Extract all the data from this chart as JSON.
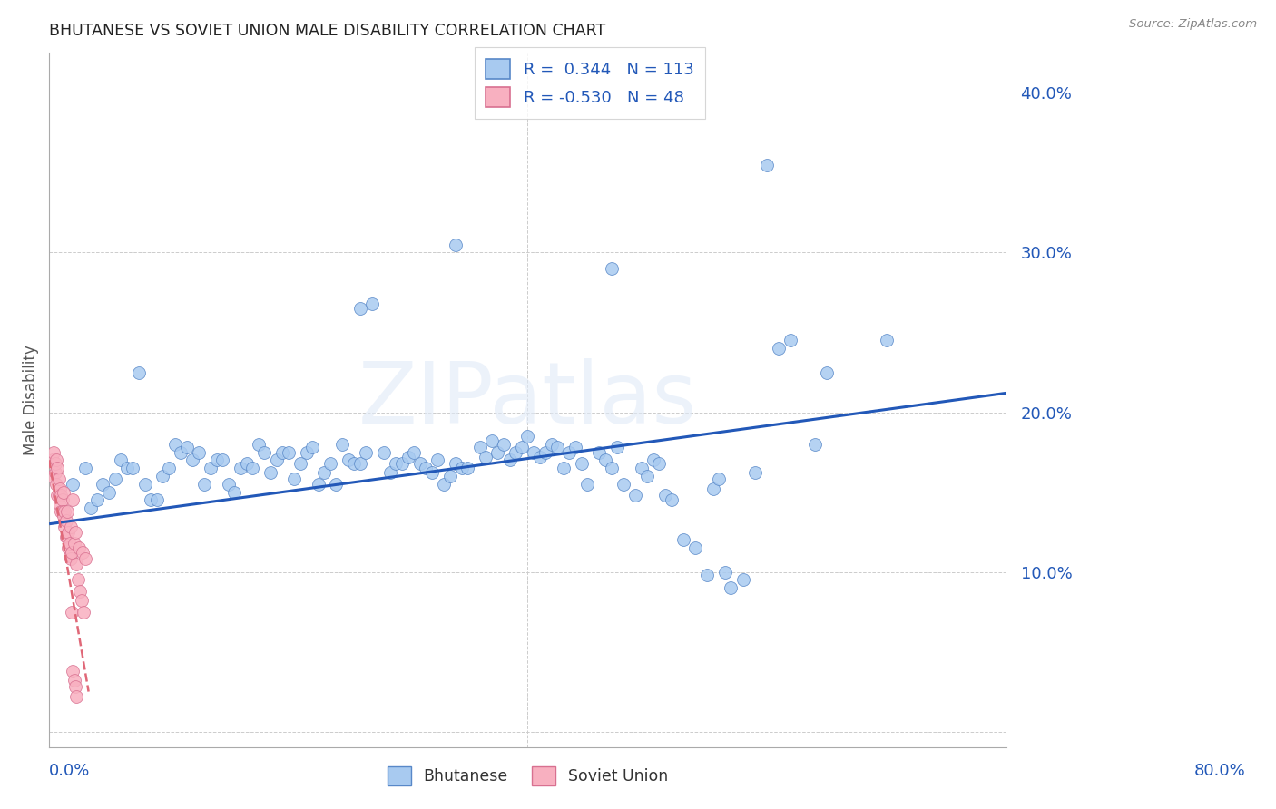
{
  "title": "BHUTANESE VS SOVIET UNION MALE DISABILITY CORRELATION CHART",
  "source": "Source: ZipAtlas.com",
  "ylabel": "Male Disability",
  "y_ticks": [
    0.0,
    0.1,
    0.2,
    0.3,
    0.4
  ],
  "y_tick_labels": [
    "",
    "10.0%",
    "20.0%",
    "30.0%",
    "40.0%"
  ],
  "x_range": [
    0.0,
    0.8
  ],
  "y_range": [
    -0.01,
    0.425
  ],
  "blue_R": "0.344",
  "blue_N": 113,
  "pink_R": "-0.530",
  "pink_N": 48,
  "blue_color": "#a8caf0",
  "blue_edge_color": "#5888c8",
  "pink_color": "#f8b0c0",
  "pink_edge_color": "#d87090",
  "blue_line_color": "#2258b8",
  "pink_line_color": "#e06878",
  "watermark": "ZIPatlas",
  "legend_label_blue": "Bhutanese",
  "legend_label_pink": "Soviet Union",
  "blue_line_x0": 0.0,
  "blue_line_y0": 0.13,
  "blue_line_x1": 0.8,
  "blue_line_y1": 0.212,
  "pink_line_x0": 0.0,
  "pink_line_y0": 0.17,
  "pink_line_x1": 0.033,
  "pink_line_y1": 0.025,
  "blue_points_x": [
    0.02,
    0.03,
    0.035,
    0.04,
    0.045,
    0.05,
    0.055,
    0.06,
    0.065,
    0.07,
    0.075,
    0.08,
    0.085,
    0.09,
    0.095,
    0.1,
    0.105,
    0.11,
    0.115,
    0.12,
    0.125,
    0.13,
    0.135,
    0.14,
    0.145,
    0.15,
    0.155,
    0.16,
    0.165,
    0.17,
    0.175,
    0.18,
    0.185,
    0.19,
    0.195,
    0.2,
    0.205,
    0.21,
    0.215,
    0.22,
    0.225,
    0.23,
    0.235,
    0.24,
    0.245,
    0.25,
    0.255,
    0.26,
    0.265,
    0.27,
    0.28,
    0.285,
    0.29,
    0.295,
    0.3,
    0.305,
    0.31,
    0.315,
    0.32,
    0.325,
    0.33,
    0.335,
    0.34,
    0.345,
    0.35,
    0.36,
    0.365,
    0.37,
    0.375,
    0.38,
    0.385,
    0.39,
    0.395,
    0.4,
    0.405,
    0.41,
    0.415,
    0.42,
    0.425,
    0.43,
    0.435,
    0.44,
    0.445,
    0.45,
    0.46,
    0.465,
    0.47,
    0.475,
    0.48,
    0.49,
    0.495,
    0.5,
    0.505,
    0.51,
    0.515,
    0.52,
    0.53,
    0.54,
    0.55,
    0.555,
    0.56,
    0.565,
    0.57,
    0.58,
    0.59,
    0.6,
    0.61,
    0.62,
    0.64,
    0.65,
    0.7,
    0.26,
    0.34,
    0.47
  ],
  "blue_points_y": [
    0.155,
    0.165,
    0.14,
    0.145,
    0.155,
    0.15,
    0.158,
    0.17,
    0.165,
    0.165,
    0.225,
    0.155,
    0.145,
    0.145,
    0.16,
    0.165,
    0.18,
    0.175,
    0.178,
    0.17,
    0.175,
    0.155,
    0.165,
    0.17,
    0.17,
    0.155,
    0.15,
    0.165,
    0.168,
    0.165,
    0.18,
    0.175,
    0.162,
    0.17,
    0.175,
    0.175,
    0.158,
    0.168,
    0.175,
    0.178,
    0.155,
    0.162,
    0.168,
    0.155,
    0.18,
    0.17,
    0.168,
    0.168,
    0.175,
    0.268,
    0.175,
    0.162,
    0.168,
    0.168,
    0.172,
    0.175,
    0.168,
    0.165,
    0.162,
    0.17,
    0.155,
    0.16,
    0.168,
    0.165,
    0.165,
    0.178,
    0.172,
    0.182,
    0.175,
    0.18,
    0.17,
    0.175,
    0.178,
    0.185,
    0.175,
    0.172,
    0.175,
    0.18,
    0.178,
    0.165,
    0.175,
    0.178,
    0.168,
    0.155,
    0.175,
    0.17,
    0.165,
    0.178,
    0.155,
    0.148,
    0.165,
    0.16,
    0.17,
    0.168,
    0.148,
    0.145,
    0.12,
    0.115,
    0.098,
    0.152,
    0.158,
    0.1,
    0.09,
    0.095,
    0.162,
    0.355,
    0.24,
    0.245,
    0.18,
    0.225,
    0.245,
    0.265,
    0.305,
    0.29
  ],
  "pink_points_x": [
    0.002,
    0.003,
    0.004,
    0.005,
    0.005,
    0.006,
    0.006,
    0.007,
    0.007,
    0.008,
    0.008,
    0.009,
    0.009,
    0.01,
    0.01,
    0.011,
    0.011,
    0.012,
    0.012,
    0.013,
    0.013,
    0.014,
    0.014,
    0.015,
    0.015,
    0.016,
    0.016,
    0.017,
    0.017,
    0.018,
    0.018,
    0.019,
    0.019,
    0.02,
    0.02,
    0.021,
    0.021,
    0.022,
    0.022,
    0.023,
    0.023,
    0.024,
    0.025,
    0.026,
    0.027,
    0.028,
    0.029,
    0.03
  ],
  "pink_points_y": [
    0.16,
    0.17,
    0.175,
    0.162,
    0.168,
    0.17,
    0.155,
    0.165,
    0.148,
    0.158,
    0.148,
    0.152,
    0.142,
    0.148,
    0.138,
    0.145,
    0.138,
    0.15,
    0.135,
    0.138,
    0.128,
    0.132,
    0.122,
    0.138,
    0.122,
    0.125,
    0.115,
    0.118,
    0.11,
    0.128,
    0.108,
    0.112,
    0.075,
    0.145,
    0.038,
    0.118,
    0.032,
    0.125,
    0.028,
    0.105,
    0.022,
    0.095,
    0.115,
    0.088,
    0.082,
    0.112,
    0.075,
    0.108
  ]
}
